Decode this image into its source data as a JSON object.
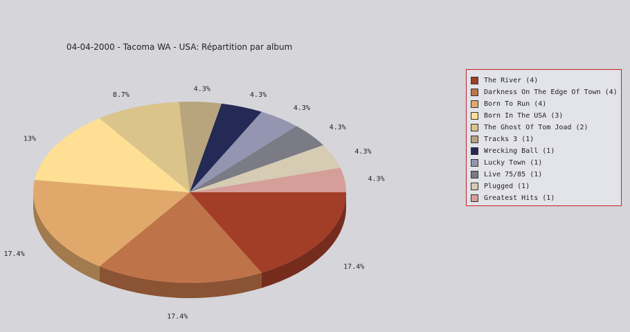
{
  "chart_data": {
    "type": "pie",
    "title": "04-04-2000 - Tacoma WA - USA:  Répartition par album",
    "slices": [
      {
        "label": "The River (4)",
        "value": 4,
        "pct_label": "17.4%",
        "color": "#a23d28"
      },
      {
        "label": "Darkness On The Edge Of Town (4)",
        "value": 4,
        "pct_label": "17.4%",
        "color": "#bf7348"
      },
      {
        "label": "Born To Run (4)",
        "value": 4,
        "pct_label": "17.4%",
        "color": "#e0a96b"
      },
      {
        "label": "Born In The USA (3)",
        "value": 3,
        "pct_label": "13%",
        "color": "#fedf93"
      },
      {
        "label": "The Ghost Of Tom Joad (2)",
        "value": 2,
        "pct_label": "8.7%",
        "color": "#dbc489"
      },
      {
        "label": "Tracks 3 (1)",
        "value": 1,
        "pct_label": "4.3%",
        "color": "#b8a57d"
      },
      {
        "label": "Wrecking Ball (1)",
        "value": 1,
        "pct_label": "4.3%",
        "color": "#242a55"
      },
      {
        "label": "Lucky Town (1)",
        "value": 1,
        "pct_label": "4.3%",
        "color": "#9395b1"
      },
      {
        "label": "Live 75/85 (1)",
        "value": 1,
        "pct_label": "4.3%",
        "color": "#7b7b86"
      },
      {
        "label": "Plugged (1)",
        "value": 1,
        "pct_label": "4.3%",
        "color": "#d6cbb3"
      },
      {
        "label": "Greatest Hits (1)",
        "value": 1,
        "pct_label": "4.3%",
        "color": "#d59e98"
      }
    ],
    "legend_position": "right"
  }
}
